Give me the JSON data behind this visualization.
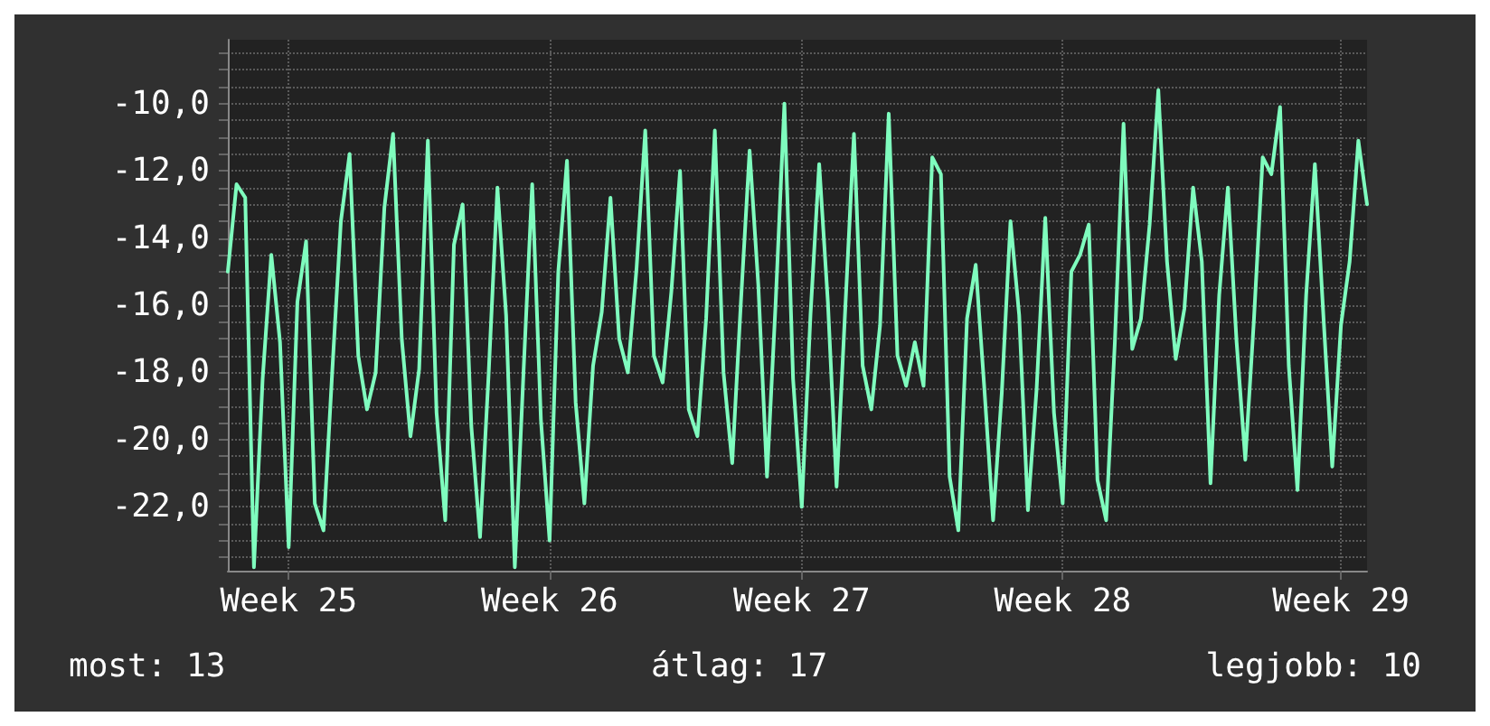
{
  "chart_data": {
    "type": "line",
    "color": "#7ffcbe",
    "grid": true,
    "marker": "none",
    "line_style": "solid",
    "categories": [
      null,
      null,
      null,
      null,
      null,
      null,
      null,
      "Week 25",
      null,
      null,
      null,
      null,
      null,
      null,
      null,
      null,
      null,
      null,
      null,
      null,
      null,
      null,
      null,
      null,
      null,
      null,
      null,
      null,
      null,
      null,
      null,
      null,
      null,
      null,
      null,
      null,
      null,
      "Week 26",
      null,
      null,
      null,
      null,
      null,
      null,
      null,
      null,
      null,
      null,
      null,
      null,
      null,
      null,
      null,
      null,
      null,
      null,
      null,
      null,
      null,
      null,
      null,
      null,
      null,
      null,
      null,
      null,
      "Week 27",
      null,
      null,
      null,
      null,
      null,
      null,
      null,
      null,
      null,
      null,
      null,
      null,
      null,
      null,
      null,
      null,
      null,
      null,
      null,
      null,
      null,
      null,
      null,
      null,
      null,
      null,
      null,
      null,
      null,
      "Week 28",
      null,
      null,
      null,
      null,
      null,
      null,
      null,
      null,
      null,
      null,
      null,
      null,
      null,
      null,
      null,
      null,
      null,
      null,
      null,
      null,
      null,
      null,
      null,
      null,
      null,
      null,
      null,
      null,
      null,
      null,
      null,
      "Week 29",
      null,
      null,
      null
    ],
    "values": [
      -15,
      -12.4,
      -12.8,
      -23.8,
      -18.2,
      -14.5,
      -17.1,
      -23.2,
      -15.9,
      -14.1,
      -21.9,
      -22.7,
      -18,
      -13.5,
      -11.5,
      -17.5,
      -19.1,
      -18,
      -13.1,
      -10.9,
      -17,
      -19.9,
      -17.9,
      -11.1,
      -19.2,
      -22.4,
      -14.2,
      -13,
      -19.6,
      -22.9,
      -18,
      -12.5,
      -16.3,
      -23.8,
      -18,
      -12.4,
      -19.4,
      -23,
      -15,
      -11.7,
      -18.9,
      -21.9,
      -17.8,
      -16.2,
      -12.8,
      -17,
      -18,
      -14.9,
      -10.8,
      -17.5,
      -18.3,
      -15.6,
      -12,
      -19.1,
      -19.9,
      -16.4,
      -10.8,
      -18,
      -20.7,
      -15.9,
      -11.4,
      -15.4,
      -21.1,
      -15.9,
      -10,
      -18.2,
      -22,
      -16.3,
      -11.8,
      -15.9,
      -21.4,
      -16.1,
      -10.9,
      -17.8,
      -19.1,
      -16.6,
      -10.3,
      -17.5,
      -18.4,
      -17.1,
      -18.4,
      -11.6,
      -12.1,
      -21.1,
      -22.7,
      -16.4,
      -14.8,
      -18.5,
      -22.4,
      -18.6,
      -13.5,
      -16.3,
      -22.1,
      -18.5,
      -13.4,
      -19.2,
      -21.9,
      -15,
      -14.5,
      -13.6,
      -21.2,
      -22.4,
      -17.1,
      -10.6,
      -17.3,
      -16.4,
      -13.6,
      -9.6,
      -14.7,
      -17.6,
      -16.1,
      -12.5,
      -14.7,
      -21.3,
      -15.7,
      -12.5,
      -17.1,
      -20.6,
      -16.4,
      -11.6,
      -12.1,
      -10.1,
      -17.8,
      -21.5,
      -15.7,
      -11.8,
      -16.4,
      -20.8,
      -16.6,
      -14.7,
      -11.1,
      -13
    ],
    "ylim": [
      -23.9,
      -8.1
    ],
    "yticks": [
      {
        "value": -23.5,
        "label": null
      },
      {
        "value": -23,
        "label": null
      },
      {
        "value": -22.5,
        "label": null
      },
      {
        "value": -22,
        "label": "-22,0"
      },
      {
        "value": -21.5,
        "label": null
      },
      {
        "value": -21,
        "label": null
      },
      {
        "value": -20.5,
        "label": null
      },
      {
        "value": -20,
        "label": "-20,0"
      },
      {
        "value": -19.5,
        "label": null
      },
      {
        "value": -19,
        "label": null
      },
      {
        "value": -18.5,
        "label": null
      },
      {
        "value": -18,
        "label": "-18,0"
      },
      {
        "value": -17.5,
        "label": null
      },
      {
        "value": -17,
        "label": null
      },
      {
        "value": -16.5,
        "label": null
      },
      {
        "value": -16,
        "label": "-16,0"
      },
      {
        "value": -15.5,
        "label": null
      },
      {
        "value": -15,
        "label": null
      },
      {
        "value": -14.5,
        "label": null
      },
      {
        "value": -14,
        "label": "-14,0"
      },
      {
        "value": -13.5,
        "label": null
      },
      {
        "value": -13,
        "label": null
      },
      {
        "value": -12.5,
        "label": null
      },
      {
        "value": -12,
        "label": "-12,0"
      },
      {
        "value": -11.5,
        "label": null
      },
      {
        "value": -11,
        "label": null
      },
      {
        "value": -10.5,
        "label": null
      },
      {
        "value": -10,
        "label": "-10,0"
      },
      {
        "value": -9.5,
        "label": null
      },
      {
        "value": -9,
        "label": null
      },
      {
        "value": -8.5,
        "label": null
      }
    ],
    "annotations": [
      "most: 13",
      "átlag: 17",
      "legjobb: 10"
    ]
  }
}
